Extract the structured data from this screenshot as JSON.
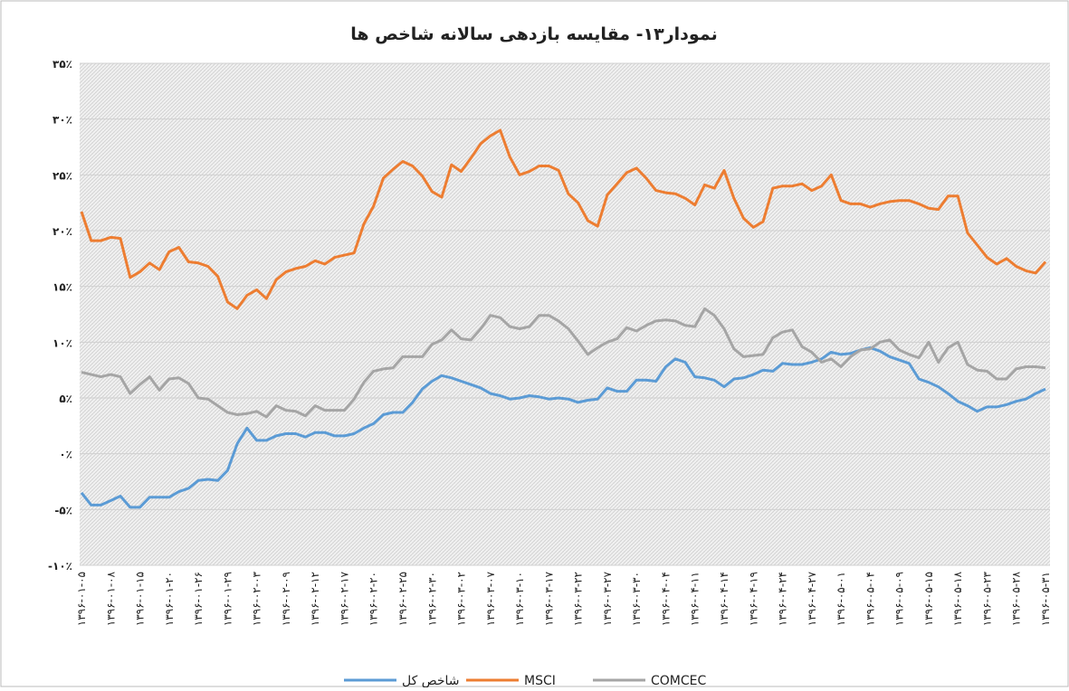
{
  "chart_data": {
    "type": "line",
    "title": "نمودار۱۳- مقایسه بازدهی سالانه شاخص ها",
    "categories": [
      "۱۳۹۶-۰۱-۰۵",
      null,
      null,
      "۱۳۹۶-۰۱-۰۸",
      null,
      null,
      "۱۳۹۶-۰۱-۱۵",
      null,
      null,
      "۱۳۹۶-۰۱-۲۰",
      null,
      null,
      "۱۳۹۶-۰۱-۲۶",
      null,
      null,
      "۱۳۹۶-۰۱-۲۹",
      null,
      null,
      "۱۳۹۶-۰۲-۰۳",
      null,
      null,
      "۱۳۹۶-۰۲-۰۹",
      null,
      null,
      "۱۳۹۶-۰۲-۱۲",
      null,
      null,
      "۱۳۹۶-۰۲-۱۷",
      null,
      null,
      "۱۳۹۶-۰۲-۲۰",
      null,
      null,
      "۱۳۹۶-۰۲-۲۵",
      null,
      null,
      "۱۳۹۶-۰۲-۳۰",
      null,
      null,
      "۱۳۹۶-۰۳-۰۲",
      null,
      null,
      "۱۳۹۶-۰۳-۰۷",
      null,
      null,
      "۱۳۹۶-۰۳-۱۰",
      null,
      null,
      "۱۳۹۶-۰۳-۱۷",
      null,
      null,
      "۱۳۹۶-۰۳-۲۲",
      null,
      null,
      "۱۳۹۶-۰۳-۲۷",
      null,
      null,
      "۱۳۹۶-۰۳-۳۰",
      null,
      null,
      "۱۳۹۶-۰۴-۰۴",
      null,
      null,
      "۱۳۹۶-۰۴-۱۱",
      null,
      null,
      "۱۳۹۶-۰۴-۱۴",
      null,
      null,
      "۱۳۹۶-۰۴-۱۹",
      null,
      null,
      "۱۳۹۶-۰۴-۲۴",
      null,
      null,
      "۱۳۹۶-۰۴-۲۷",
      null,
      null,
      "۱۳۹۶-۰۵-۰۱",
      null,
      null,
      "۱۳۹۶-۰۵-۰۴",
      null,
      null,
      "۱۳۹۶-۰۵-۰۹",
      null,
      null,
      "۱۳۹۶-۰۵-۱۵",
      null,
      null,
      "۱۳۹۶-۰۵-۱۸",
      null,
      null,
      "۱۳۹۶-۰۵-۲۳",
      null,
      null,
      "۱۳۹۶-۰۵-۲۸",
      null,
      null,
      "۱۳۹۶-۰۵-۳۱"
    ],
    "series": [
      {
        "name": "شاخص کل",
        "color": "#5b9bd5",
        "values": [
          -3.5,
          -4.6,
          -4.6,
          -4.2,
          -3.8,
          -4.8,
          -4.8,
          -3.9,
          -3.9,
          -3.9,
          -3.4,
          -3.1,
          -2.4,
          -2.3,
          -2.4,
          -1.5,
          0.9,
          2.3,
          1.2,
          1.2,
          1.6,
          1.8,
          1.8,
          1.5,
          1.9,
          1.9,
          1.6,
          1.6,
          1.8,
          2.3,
          2.7,
          3.5,
          3.7,
          3.7,
          4.6,
          5.8,
          6.5,
          7.0,
          6.8,
          6.5,
          6.2,
          5.9,
          5.4,
          5.2,
          4.9,
          5.0,
          5.2,
          5.1,
          4.9,
          5.0,
          4.9,
          4.6,
          4.8,
          4.9,
          5.9,
          5.6,
          5.6,
          6.6,
          6.6,
          6.5,
          7.8,
          8.5,
          8.2,
          6.9,
          6.8,
          6.6,
          6.0,
          6.7,
          6.8,
          7.1,
          7.5,
          7.4,
          8.1,
          8.0,
          8.0,
          8.2,
          8.5,
          9.1,
          8.9,
          9.0,
          9.3,
          9.5,
          9.2,
          8.7,
          8.4,
          8.1,
          6.7,
          6.4,
          6.0,
          5.4,
          4.7,
          4.3,
          3.8,
          4.2,
          4.2,
          4.4,
          4.7,
          4.9,
          5.4,
          5.8
        ]
      },
      {
        "name": "MSCI",
        "color": "#ed7d31",
        "values": [
          21.7,
          19.1,
          19.1,
          19.4,
          19.3,
          15.8,
          16.3,
          17.1,
          16.5,
          18.1,
          18.5,
          17.2,
          17.1,
          16.8,
          15.9,
          13.6,
          13.0,
          14.2,
          14.7,
          13.9,
          15.6,
          16.3,
          16.6,
          16.8,
          17.3,
          17.0,
          17.6,
          17.8,
          18.0,
          20.6,
          22.2,
          24.7,
          25.5,
          26.2,
          25.8,
          24.9,
          23.5,
          23.0,
          25.9,
          25.3,
          26.5,
          27.8,
          28.5,
          29.0,
          26.6,
          25.0,
          25.3,
          25.8,
          25.8,
          25.4,
          23.3,
          22.5,
          20.9,
          20.4,
          23.2,
          24.2,
          25.2,
          25.6,
          24.7,
          23.6,
          23.4,
          23.3,
          22.9,
          22.3,
          24.1,
          23.8,
          25.4,
          22.9,
          21.1,
          20.3,
          20.8,
          23.8,
          24.0,
          24.0,
          24.2,
          23.6,
          24.0,
          25.0,
          22.7,
          22.4,
          22.4,
          22.1,
          22.4,
          22.6,
          22.7,
          22.7,
          22.4,
          22.0,
          21.9,
          23.1,
          23.1,
          19.8,
          18.7,
          17.6,
          17.0,
          17.5,
          16.8,
          16.4,
          16.2,
          17.2
        ]
      },
      {
        "name": "COMCEC",
        "color": "#a5a5a5",
        "values": [
          7.3,
          7.1,
          6.9,
          7.1,
          6.9,
          5.4,
          6.2,
          6.9,
          5.7,
          6.7,
          6.8,
          6.3,
          5.0,
          4.9,
          4.3,
          3.7,
          3.5,
          3.6,
          3.8,
          3.3,
          4.3,
          3.9,
          3.8,
          3.4,
          4.3,
          3.9,
          3.9,
          3.9,
          4.9,
          6.4,
          7.4,
          7.6,
          7.7,
          8.7,
          8.7,
          8.7,
          9.8,
          10.2,
          11.1,
          10.3,
          10.2,
          11.2,
          12.4,
          12.2,
          11.4,
          11.2,
          11.4,
          12.4,
          12.4,
          11.9,
          11.2,
          10.1,
          8.9,
          9.5,
          10.0,
          10.3,
          11.3,
          11.0,
          11.5,
          11.9,
          12.0,
          11.9,
          11.5,
          11.4,
          13.0,
          12.4,
          11.2,
          9.4,
          8.7,
          8.8,
          8.9,
          10.4,
          10.9,
          11.1,
          9.6,
          9.1,
          8.2,
          8.5,
          7.8,
          8.7,
          9.3,
          9.4,
          10.0,
          10.2,
          9.3,
          8.9,
          8.6,
          10.0,
          8.2,
          9.5,
          10.0,
          8.0,
          7.5,
          7.4,
          6.7,
          6.7,
          7.6,
          7.8,
          7.8,
          7.7
        ]
      }
    ],
    "ylim": [
      -10,
      35
    ],
    "yticks": [
      {
        "value": -10,
        "label": "-۱۰٪"
      },
      {
        "value": -5,
        "label": "-۵٪"
      },
      {
        "value": 0,
        "label": "۰٪"
      },
      {
        "value": 5,
        "label": "۵٪"
      },
      {
        "value": 10,
        "label": "۱۰٪"
      },
      {
        "value": 15,
        "label": "۱۵٪"
      },
      {
        "value": 20,
        "label": "۲۰٪"
      },
      {
        "value": 25,
        "label": "۲۵٪"
      },
      {
        "value": 30,
        "label": "۳۰٪"
      },
      {
        "value": 35,
        "label": "۳۵٪"
      }
    ],
    "grid": true,
    "legend": "bottom"
  }
}
